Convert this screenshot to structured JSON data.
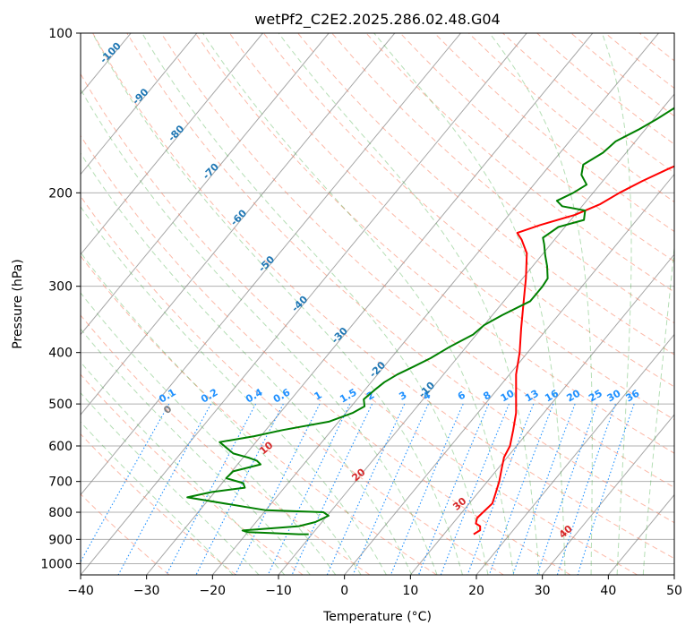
{
  "chart_data": {
    "type": "line",
    "subtype": "skew-t log-p diagram",
    "title": "wetPf2_C2E2.2025.286.02.48.G04",
    "xlabel": "Temperature (°C)",
    "ylabel": "Pressure (hPa)",
    "xlim": [
      -40,
      50
    ],
    "ylim": [
      1050,
      100
    ],
    "y_scale": "log",
    "x_ticks": [
      "−40",
      "−30",
      "−20",
      "−10",
      "0",
      "10",
      "20",
      "30",
      "40",
      "50"
    ],
    "y_ticks": [
      "100",
      "200",
      "300",
      "400",
      "500",
      "600",
      "700",
      "800",
      "900",
      "1000"
    ],
    "grid": true,
    "colors": {
      "temperature": "#ff0000",
      "dewpoint": "#008000",
      "isotherm": "#808080",
      "dry_adiabat": "#fa8060",
      "moist_adiabat": "#2ca02c",
      "mixing_ratio": "#1e90ff",
      "isotherm_label": "#1f77b4",
      "adiabat_label": "#d62728"
    },
    "series": [
      {
        "key": "temperature",
        "points": [
          [
            14.5,
            880
          ],
          [
            15,
            865
          ],
          [
            14.5,
            850
          ],
          [
            13.5,
            840
          ],
          [
            13,
            820
          ],
          [
            13.2,
            800
          ],
          [
            13.5,
            770
          ],
          [
            12.8,
            740
          ],
          [
            11.8,
            700
          ],
          [
            10.5,
            660
          ],
          [
            9.5,
            630
          ],
          [
            9,
            600
          ],
          [
            7.5,
            560
          ],
          [
            5.8,
            520
          ],
          [
            3.5,
            480
          ],
          [
            1,
            440
          ],
          [
            -1.2,
            400
          ],
          [
            -4,
            360
          ],
          [
            -7,
            320
          ],
          [
            -9.5,
            290
          ],
          [
            -12.5,
            260
          ],
          [
            -15,
            245
          ],
          [
            -16.5,
            238
          ],
          [
            -14,
            230
          ],
          [
            -10,
            220
          ],
          [
            -7.5,
            210
          ],
          [
            -6,
            200
          ],
          [
            -4,
            190
          ],
          [
            -1.5,
            180
          ],
          [
            1.5,
            170
          ],
          [
            4,
            160
          ],
          [
            5,
            152
          ],
          [
            6,
            145
          ],
          [
            9,
            138
          ],
          [
            13,
            130
          ],
          [
            18,
            120
          ],
          [
            23,
            110
          ],
          [
            28,
            100
          ]
        ]
      },
      {
        "key": "dewpoint",
        "points": [
          [
            -10.5,
            880
          ],
          [
            -12,
            880
          ],
          [
            -16,
            876
          ],
          [
            -20,
            872
          ],
          [
            -21,
            866
          ],
          [
            -19,
            862
          ],
          [
            -13,
            850
          ],
          [
            -11,
            835
          ],
          [
            -9.8,
            812
          ],
          [
            -11,
            800
          ],
          [
            -20,
            793
          ],
          [
            -33.5,
            750
          ],
          [
            -30.5,
            733
          ],
          [
            -26,
            719
          ],
          [
            -26.8,
            705
          ],
          [
            -30,
            690
          ],
          [
            -29.8,
            670
          ],
          [
            -26.5,
            650
          ],
          [
            -27.5,
            640
          ],
          [
            -29,
            632
          ],
          [
            -32,
            620
          ],
          [
            -35.5,
            590
          ],
          [
            -31,
            575
          ],
          [
            -27.5,
            560
          ],
          [
            -21.5,
            540
          ],
          [
            -19,
            520
          ],
          [
            -18,
            505
          ],
          [
            -19,
            490
          ],
          [
            -18.5,
            470
          ],
          [
            -18,
            455
          ],
          [
            -17,
            440
          ],
          [
            -15.5,
            425
          ],
          [
            -14,
            410
          ],
          [
            -12.5,
            390
          ],
          [
            -10.5,
            370
          ],
          [
            -10,
            355
          ],
          [
            -8.5,
            340
          ],
          [
            -6,
            320
          ],
          [
            -6,
            300
          ],
          [
            -6.2,
            290
          ],
          [
            -7.8,
            275
          ],
          [
            -9.5,
            262
          ],
          [
            -11,
            250
          ],
          [
            -12,
            243
          ],
          [
            -11,
            232
          ],
          [
            -8,
            225
          ],
          [
            -9,
            216
          ],
          [
            -13,
            212
          ],
          [
            -14.5,
            207
          ],
          [
            -13,
            200
          ],
          [
            -12,
            193
          ],
          [
            -14,
            185
          ],
          [
            -15,
            177
          ],
          [
            -13.5,
            168
          ],
          [
            -13,
            160
          ],
          [
            -11,
            152
          ],
          [
            -9.5,
            145
          ],
          [
            -8,
            137
          ],
          [
            -6,
            128
          ],
          [
            -3.5,
            118
          ],
          [
            0,
            110
          ],
          [
            3.5,
            100
          ]
        ]
      }
    ],
    "isotherm_labels": [
      "-100",
      "-90",
      "-80",
      "-70",
      "-60",
      "-50",
      "-40",
      "-30",
      "-20",
      "-10"
    ],
    "mixing_ratio_labels": [
      "0.1",
      "0.2",
      "0.4",
      "0.6",
      "1",
      "1.5",
      "2",
      "3",
      "4",
      "6",
      "8",
      "10",
      "13",
      "16",
      "20",
      "25",
      "30",
      "36"
    ],
    "dry_adiabat_labels": [
      "0",
      "10",
      "20",
      "30",
      "40"
    ]
  }
}
